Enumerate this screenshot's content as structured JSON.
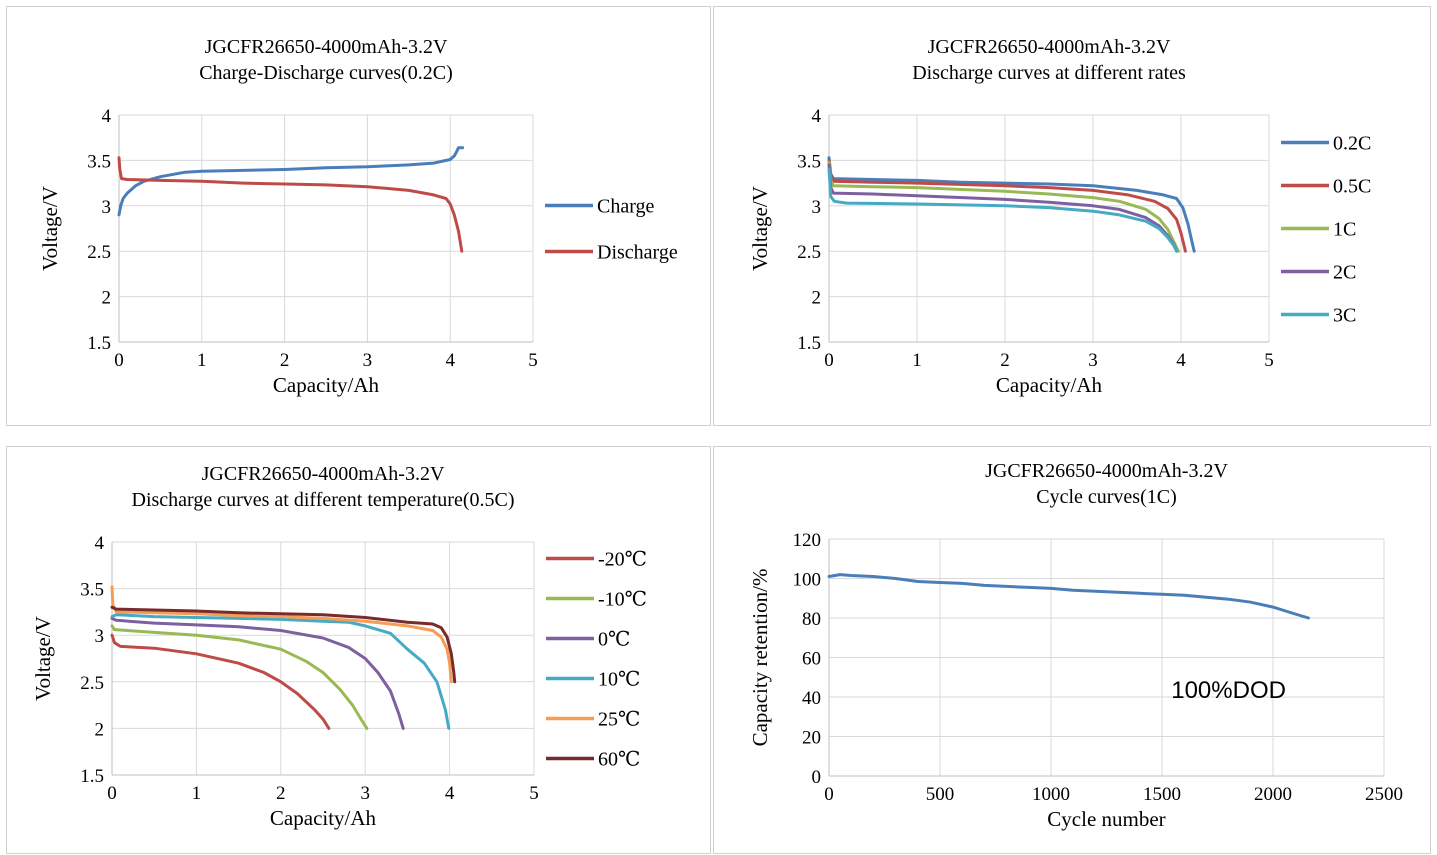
{
  "chart_data": [
    {
      "type": "line",
      "title": "JGCFR26650-4000mAh-3.2V",
      "subtitle": "Charge-Discharge curves(0.2C)",
      "xlabel": "Capacity/Ah",
      "ylabel": "Voltage/V",
      "xlim": [
        0,
        5
      ],
      "ylim": [
        1.5,
        4
      ],
      "xticks": [
        "0",
        "1",
        "2",
        "3",
        "4",
        "5"
      ],
      "yticks": [
        "1.5",
        "2",
        "2.5",
        "3",
        "3.5",
        "4"
      ],
      "grid": true,
      "legend": "right",
      "series": [
        {
          "name": "Charge",
          "color": "#4a7ebb",
          "points": [
            [
              0,
              2.9
            ],
            [
              0.02,
              3.0
            ],
            [
              0.05,
              3.08
            ],
            [
              0.1,
              3.14
            ],
            [
              0.2,
              3.22
            ],
            [
              0.3,
              3.27
            ],
            [
              0.5,
              3.32
            ],
            [
              0.8,
              3.37
            ],
            [
              1.0,
              3.38
            ],
            [
              1.5,
              3.39
            ],
            [
              2.0,
              3.4
            ],
            [
              2.5,
              3.42
            ],
            [
              3.0,
              3.43
            ],
            [
              3.5,
              3.45
            ],
            [
              3.8,
              3.47
            ],
            [
              4.0,
              3.51
            ],
            [
              4.05,
              3.55
            ],
            [
              4.08,
              3.6
            ],
            [
              4.1,
              3.64
            ],
            [
              4.15,
              3.64
            ]
          ]
        },
        {
          "name": "Discharge",
          "color": "#be4b48",
          "points": [
            [
              0,
              3.53
            ],
            [
              0.01,
              3.4
            ],
            [
              0.03,
              3.3
            ],
            [
              0.1,
              3.29
            ],
            [
              0.5,
              3.28
            ],
            [
              1.0,
              3.27
            ],
            [
              1.5,
              3.25
            ],
            [
              2.0,
              3.24
            ],
            [
              2.5,
              3.23
            ],
            [
              3.0,
              3.21
            ],
            [
              3.5,
              3.17
            ],
            [
              3.8,
              3.12
            ],
            [
              3.95,
              3.08
            ],
            [
              4.0,
              3.02
            ],
            [
              4.05,
              2.9
            ],
            [
              4.1,
              2.72
            ],
            [
              4.14,
              2.5
            ]
          ]
        }
      ]
    },
    {
      "type": "line",
      "title": "JGCFR26650-4000mAh-3.2V",
      "subtitle": "Discharge curves at different rates",
      "xlabel": "Capacity/Ah",
      "ylabel": "Voltage/V",
      "xlim": [
        0,
        5
      ],
      "ylim": [
        1.5,
        4
      ],
      "xticks": [
        "0",
        "1",
        "2",
        "3",
        "4",
        "5"
      ],
      "yticks": [
        "1.5",
        "2",
        "2.5",
        "3",
        "3.5",
        "4"
      ],
      "grid": true,
      "legend": "right",
      "series": [
        {
          "name": "0.2C",
          "color": "#4a7ebb",
          "points": [
            [
              0,
              3.53
            ],
            [
              0.02,
              3.35
            ],
            [
              0.05,
              3.3
            ],
            [
              0.5,
              3.29
            ],
            [
              1.0,
              3.28
            ],
            [
              1.5,
              3.26
            ],
            [
              2.0,
              3.25
            ],
            [
              2.5,
              3.24
            ],
            [
              3.0,
              3.22
            ],
            [
              3.5,
              3.17
            ],
            [
              3.8,
              3.12
            ],
            [
              3.95,
              3.08
            ],
            [
              4.02,
              2.98
            ],
            [
              4.08,
              2.8
            ],
            [
              4.12,
              2.62
            ],
            [
              4.15,
              2.5
            ]
          ]
        },
        {
          "name": "0.5C",
          "color": "#be4b48",
          "points": [
            [
              0,
              3.5
            ],
            [
              0.02,
              3.32
            ],
            [
              0.05,
              3.27
            ],
            [
              0.5,
              3.26
            ],
            [
              1.0,
              3.25
            ],
            [
              2.0,
              3.22
            ],
            [
              2.5,
              3.2
            ],
            [
              3.0,
              3.17
            ],
            [
              3.4,
              3.12
            ],
            [
              3.7,
              3.05
            ],
            [
              3.85,
              2.97
            ],
            [
              3.95,
              2.85
            ],
            [
              4.0,
              2.7
            ],
            [
              4.05,
              2.5
            ]
          ]
        },
        {
          "name": "1C",
          "color": "#98b954",
          "points": [
            [
              0,
              3.48
            ],
            [
              0.02,
              3.28
            ],
            [
              0.05,
              3.22
            ],
            [
              0.5,
              3.21
            ],
            [
              1.0,
              3.2
            ],
            [
              2.0,
              3.16
            ],
            [
              2.5,
              3.13
            ],
            [
              3.0,
              3.09
            ],
            [
              3.3,
              3.05
            ],
            [
              3.6,
              2.96
            ],
            [
              3.75,
              2.86
            ],
            [
              3.85,
              2.74
            ],
            [
              3.92,
              2.6
            ],
            [
              3.97,
              2.5
            ]
          ]
        },
        {
          "name": "2C",
          "color": "#7d60a0",
          "points": [
            [
              0,
              3.45
            ],
            [
              0.02,
              3.2
            ],
            [
              0.05,
              3.14
            ],
            [
              0.5,
              3.13
            ],
            [
              1.0,
              3.11
            ],
            [
              2.0,
              3.07
            ],
            [
              2.5,
              3.04
            ],
            [
              3.0,
              3.0
            ],
            [
              3.3,
              2.96
            ],
            [
              3.6,
              2.87
            ],
            [
              3.75,
              2.78
            ],
            [
              3.85,
              2.67
            ],
            [
              3.92,
              2.57
            ],
            [
              3.95,
              2.5
            ]
          ]
        },
        {
          "name": "3C",
          "color": "#46aac5",
          "points": [
            [
              0,
              3.4
            ],
            [
              0.02,
              3.1
            ],
            [
              0.06,
              3.05
            ],
            [
              0.2,
              3.03
            ],
            [
              1.0,
              3.02
            ],
            [
              2.0,
              3.0
            ],
            [
              2.5,
              2.98
            ],
            [
              3.0,
              2.94
            ],
            [
              3.3,
              2.9
            ],
            [
              3.6,
              2.83
            ],
            [
              3.75,
              2.75
            ],
            [
              3.85,
              2.65
            ],
            [
              3.92,
              2.56
            ],
            [
              3.95,
              2.5
            ]
          ]
        }
      ]
    },
    {
      "type": "line",
      "title": "JGCFR26650-4000mAh-3.2V",
      "subtitle": "Discharge curves at different temperature(0.5C)",
      "xlabel": "Capacity/Ah",
      "ylabel": "Voltage/V",
      "xlim": [
        0,
        5
      ],
      "ylim": [
        1.5,
        4
      ],
      "xticks": [
        "0",
        "1",
        "2",
        "3",
        "4",
        "5"
      ],
      "yticks": [
        "1.5",
        "2",
        "2.5",
        "3",
        "3.5",
        "4"
      ],
      "grid": true,
      "legend": "right",
      "series": [
        {
          "name": "-20℃",
          "color": "#be4b48",
          "points": [
            [
              0,
              3.0
            ],
            [
              0.03,
              2.92
            ],
            [
              0.1,
              2.88
            ],
            [
              0.5,
              2.86
            ],
            [
              1.0,
              2.8
            ],
            [
              1.5,
              2.7
            ],
            [
              1.8,
              2.6
            ],
            [
              2.0,
              2.5
            ],
            [
              2.2,
              2.37
            ],
            [
              2.4,
              2.2
            ],
            [
              2.5,
              2.1
            ],
            [
              2.57,
              2.0
            ]
          ]
        },
        {
          "name": "-10℃",
          "color": "#98b954",
          "points": [
            [
              0,
              3.1
            ],
            [
              0.03,
              3.06
            ],
            [
              0.5,
              3.03
            ],
            [
              1.0,
              3.0
            ],
            [
              1.5,
              2.95
            ],
            [
              2.0,
              2.85
            ],
            [
              2.3,
              2.72
            ],
            [
              2.5,
              2.6
            ],
            [
              2.7,
              2.42
            ],
            [
              2.85,
              2.25
            ],
            [
              2.95,
              2.1
            ],
            [
              3.02,
              2.0
            ]
          ]
        },
        {
          "name": "0℃",
          "color": "#7d60a0",
          "points": [
            [
              0,
              3.18
            ],
            [
              0.05,
              3.16
            ],
            [
              0.5,
              3.13
            ],
            [
              1.0,
              3.11
            ],
            [
              1.5,
              3.09
            ],
            [
              2.0,
              3.05
            ],
            [
              2.5,
              2.97
            ],
            [
              2.8,
              2.87
            ],
            [
              3.0,
              2.75
            ],
            [
              3.15,
              2.6
            ],
            [
              3.3,
              2.4
            ],
            [
              3.4,
              2.15
            ],
            [
              3.45,
              2.0
            ]
          ]
        },
        {
          "name": "10℃",
          "color": "#46aac5",
          "points": [
            [
              0,
              3.2
            ],
            [
              0.05,
              3.22
            ],
            [
              0.5,
              3.2
            ],
            [
              1.0,
              3.19
            ],
            [
              1.5,
              3.18
            ],
            [
              2.0,
              3.17
            ],
            [
              2.5,
              3.15
            ],
            [
              2.8,
              3.14
            ],
            [
              3.0,
              3.1
            ],
            [
              3.3,
              3.02
            ],
            [
              3.5,
              2.85
            ],
            [
              3.7,
              2.7
            ],
            [
              3.85,
              2.5
            ],
            [
              3.95,
              2.2
            ],
            [
              3.99,
              2.0
            ]
          ]
        },
        {
          "name": "25℃",
          "color": "#f59d56",
          "points": [
            [
              0,
              3.52
            ],
            [
              0.01,
              3.33
            ],
            [
              0.05,
              3.25
            ],
            [
              0.5,
              3.24
            ],
            [
              1.0,
              3.23
            ],
            [
              1.5,
              3.21
            ],
            [
              2.0,
              3.2
            ],
            [
              2.5,
              3.18
            ],
            [
              3.0,
              3.15
            ],
            [
              3.5,
              3.1
            ],
            [
              3.8,
              3.05
            ],
            [
              3.9,
              2.98
            ],
            [
              3.97,
              2.85
            ],
            [
              4.0,
              2.7
            ],
            [
              4.02,
              2.5
            ]
          ]
        },
        {
          "name": "60℃",
          "color": "#772c2a",
          "points": [
            [
              0,
              3.3
            ],
            [
              0.05,
              3.28
            ],
            [
              0.5,
              3.27
            ],
            [
              1.0,
              3.26
            ],
            [
              1.5,
              3.24
            ],
            [
              2.0,
              3.23
            ],
            [
              2.5,
              3.22
            ],
            [
              3.0,
              3.19
            ],
            [
              3.5,
              3.14
            ],
            [
              3.8,
              3.12
            ],
            [
              3.9,
              3.08
            ],
            [
              3.97,
              2.98
            ],
            [
              4.02,
              2.8
            ],
            [
              4.05,
              2.6
            ],
            [
              4.06,
              2.5
            ]
          ]
        }
      ]
    },
    {
      "type": "line",
      "title": "JGCFR26650-4000mAh-3.2V",
      "subtitle": "Cycle curves(1C)",
      "xlabel": "Cycle number",
      "ylabel": "Capacity retention/%",
      "xlim": [
        0,
        2500
      ],
      "ylim": [
        0,
        120
      ],
      "xticks": [
        "0",
        "500",
        "1000",
        "1500",
        "2000",
        "2500"
      ],
      "yticks": [
        "0",
        "20",
        "40",
        "60",
        "80",
        "100",
        "120"
      ],
      "grid": true,
      "legend": "none",
      "annotation": "100%DOD",
      "series": [
        {
          "color": "#4a7ebb",
          "points": [
            [
              0,
              101
            ],
            [
              50,
              102
            ],
            [
              100,
              101.5
            ],
            [
              200,
              101
            ],
            [
              300,
              100
            ],
            [
              400,
              98.5
            ],
            [
              500,
              98
            ],
            [
              600,
              97.5
            ],
            [
              700,
              96.5
            ],
            [
              800,
              96
            ],
            [
              900,
              95.5
            ],
            [
              1000,
              95
            ],
            [
              1100,
              94
            ],
            [
              1200,
              93.5
            ],
            [
              1300,
              93
            ],
            [
              1400,
              92.5
            ],
            [
              1500,
              92
            ],
            [
              1600,
              91.5
            ],
            [
              1700,
              90.5
            ],
            [
              1800,
              89.5
            ],
            [
              1900,
              88
            ],
            [
              2000,
              85.5
            ],
            [
              2100,
              82
            ],
            [
              2160,
              80
            ]
          ]
        }
      ]
    }
  ]
}
